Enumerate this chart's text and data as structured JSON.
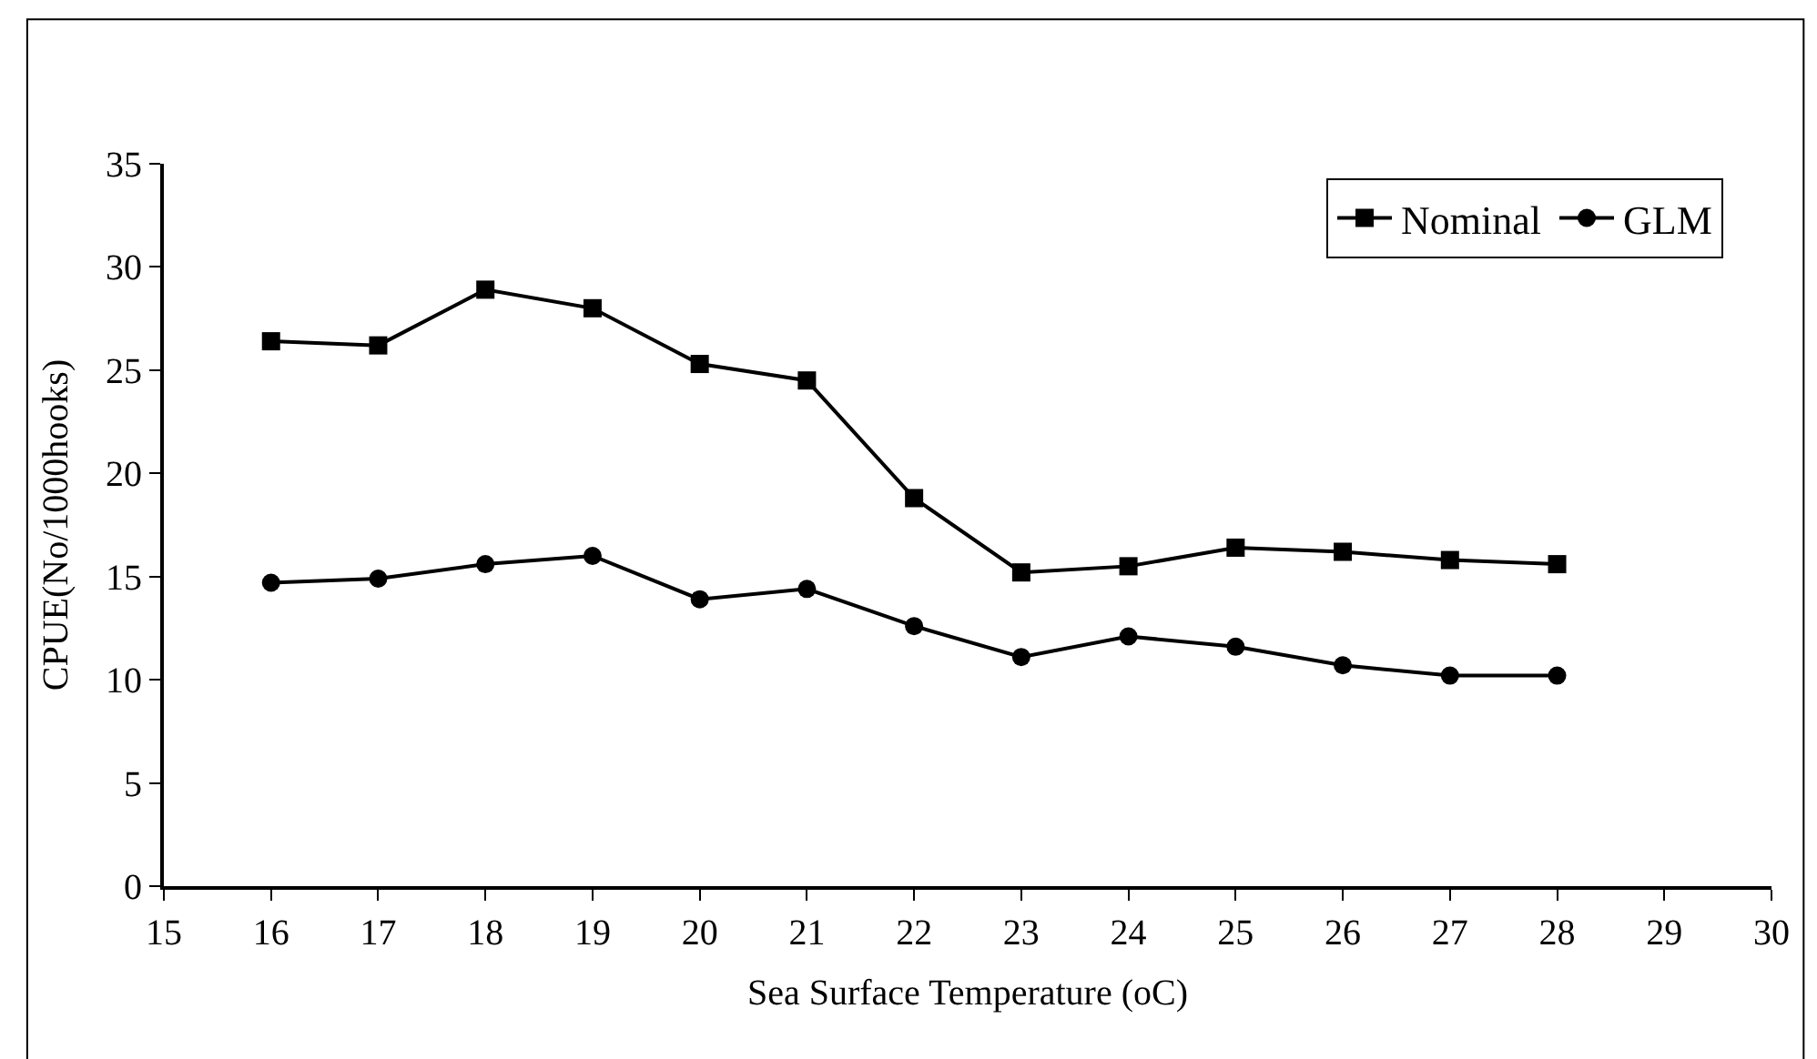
{
  "chart_data": {
    "type": "line",
    "xlabel": "Sea Surface Temperature (oC)",
    "ylabel": "CPUE(No/1000hooks)",
    "x": [
      16,
      17,
      18,
      19,
      20,
      21,
      22,
      23,
      24,
      25,
      26,
      27,
      28
    ],
    "series": [
      {
        "name": "Nominal",
        "color": "#000000",
        "marker": "square",
        "values": [
          26.4,
          26.2,
          28.9,
          28.0,
          25.3,
          24.5,
          18.8,
          15.2,
          15.5,
          16.4,
          16.2,
          15.8,
          15.6
        ]
      },
      {
        "name": "GLM",
        "color": "#000000",
        "marker": "circle",
        "values": [
          14.7,
          14.9,
          15.6,
          16.0,
          13.9,
          14.4,
          12.6,
          11.1,
          12.1,
          11.6,
          10.7,
          10.2,
          10.2
        ]
      }
    ],
    "xlim": [
      15,
      30
    ],
    "xticks": [
      15,
      16,
      17,
      18,
      19,
      20,
      21,
      22,
      23,
      24,
      25,
      26,
      27,
      28,
      29,
      30
    ],
    "ylim": [
      0,
      35
    ],
    "yticks": [
      0,
      5,
      10,
      15,
      20,
      25,
      30,
      35
    ],
    "grid": false,
    "legend": "top right",
    "line_style": "solid"
  }
}
